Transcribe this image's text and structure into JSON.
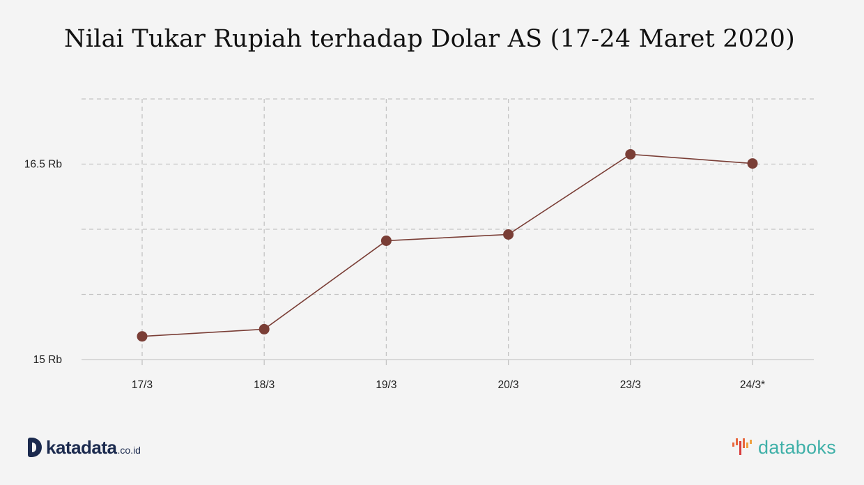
{
  "chart_data": {
    "type": "line",
    "title": "Nilai Tukar Rupiah terhadap Dolar AS (17-24 Maret 2020)",
    "categories": [
      "17/3",
      "18/3",
      "19/3",
      "20/3",
      "23/3",
      "24/3*"
    ],
    "series": [
      {
        "values": [
          15178,
          15233,
          15912,
          15960,
          16575,
          16505
        ]
      }
    ],
    "y_ticks": [
      {
        "value": 15000,
        "label": "15 Rb"
      },
      {
        "value": 15500,
        "label": ""
      },
      {
        "value": 16000,
        "label": ""
      },
      {
        "value": 16500,
        "label": "16.5 Rb"
      },
      {
        "value": 17000,
        "label": ""
      }
    ],
    "ylim": [
      15000,
      17000
    ],
    "grid": true,
    "line_color": "#7a3e36"
  },
  "branding": {
    "left_word": "katadata",
    "left_tld": ".co.id",
    "left_color": "#1b2a4e",
    "right_word": "databoks",
    "right_color": "#3fb0a8",
    "right_icon": "databoks-bars-icon"
  }
}
